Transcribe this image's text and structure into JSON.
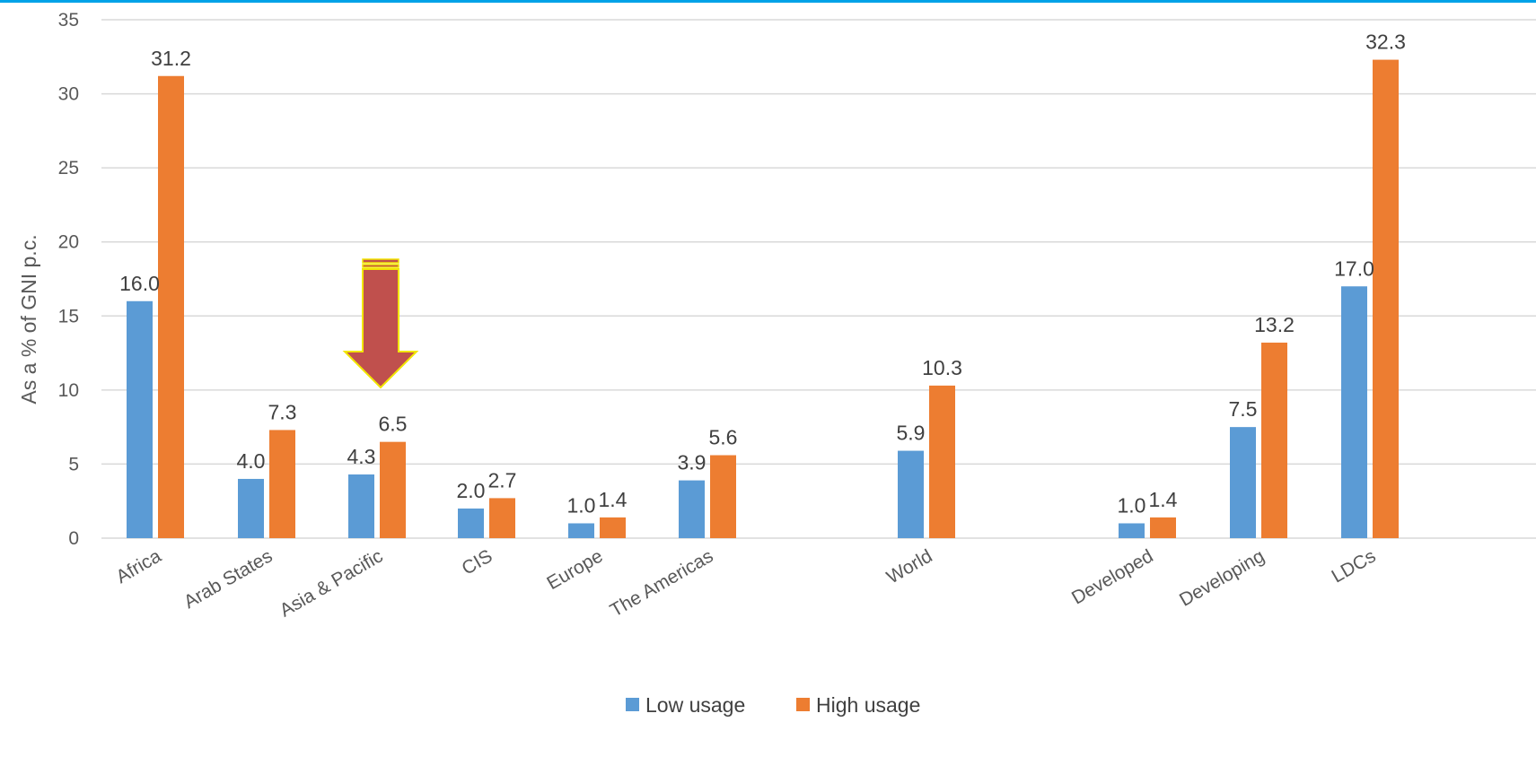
{
  "chart_data": {
    "type": "bar",
    "ylabel": "As a % of GNI p.c.",
    "ylim": [
      0,
      35
    ],
    "yticks": [
      0,
      5,
      10,
      15,
      20,
      25,
      30,
      35
    ],
    "grid": true,
    "legend_position": "bottom",
    "categories": [
      "Africa",
      "Arab States",
      "Asia & Pacific",
      "CIS",
      "Europe",
      "The Americas",
      "World",
      "Developed",
      "Developing",
      "LDCs"
    ],
    "series": [
      {
        "name": "Low usage",
        "color": "#5b9bd5",
        "values": [
          16.0,
          4.0,
          4.3,
          2.0,
          1.0,
          3.9,
          5.9,
          1.0,
          7.5,
          17.0
        ],
        "labels": [
          "16.0",
          "4.0",
          "4.3",
          "2.0",
          "1.0",
          "3.9",
          "5.9",
          "1.0",
          "7.5",
          "17.0"
        ]
      },
      {
        "name": "High usage",
        "color": "#ed7d31",
        "values": [
          31.2,
          7.3,
          6.5,
          2.7,
          1.4,
          5.6,
          10.3,
          1.4,
          13.2,
          32.3
        ],
        "labels": [
          "31.2",
          "7.3",
          "6.5",
          "2.7",
          "1.4",
          "5.6",
          "10.3",
          "1.4",
          "13.2",
          "32.3"
        ]
      }
    ],
    "annotations": [
      {
        "type": "arrow-down",
        "target_category": "Asia & Pacific",
        "color": "#c0504d",
        "outline": "#f2e600"
      }
    ]
  }
}
